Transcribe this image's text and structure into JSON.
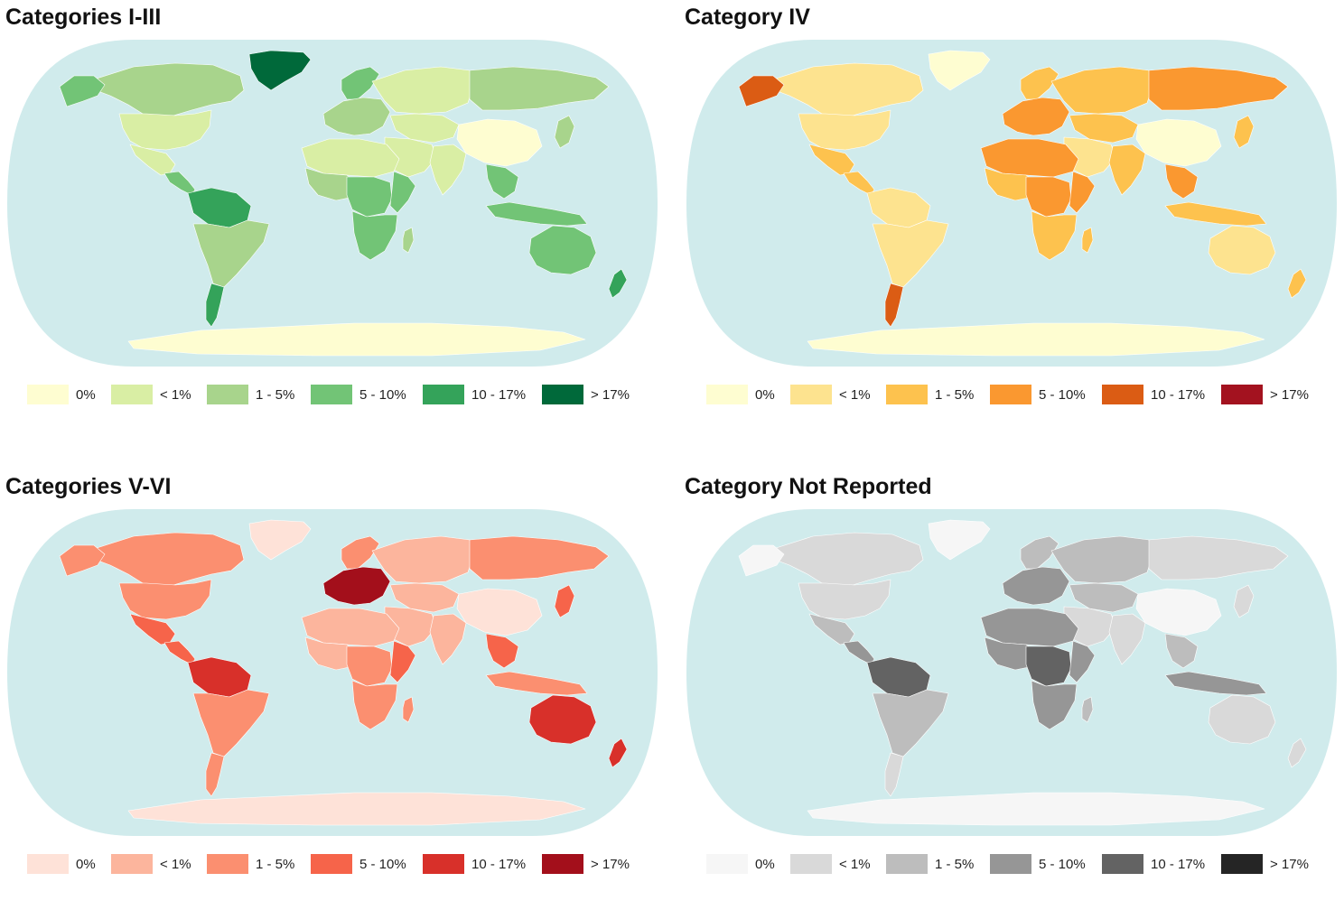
{
  "legend_labels": [
    "0%",
    "< 1%",
    "1 - 5%",
    "5 - 10%",
    "10 - 17%",
    "> 17%"
  ],
  "map_colors": {
    "ocean": "#d0ebec"
  },
  "panels": [
    {
      "title": "Categories I-III",
      "palette": [
        "#fefdd1",
        "#d9eea4",
        "#a8d48c",
        "#72c476",
        "#34a35a",
        "#00693a"
      ],
      "regions": {
        "greenland": 5,
        "canada": 2,
        "alaska": 3,
        "usa": 1,
        "mexico": 1,
        "central_america": 3,
        "south_america": 2,
        "amazon": 4,
        "patagonia": 4,
        "europe": 2,
        "scandinavia": 3,
        "russia": 1,
        "siberia_east": 2,
        "central_asia": 1,
        "china": 0,
        "middle_east": 1,
        "india": 1,
        "southeast_asia": 3,
        "indonesia": 3,
        "japan": 2,
        "north_africa": 1,
        "west_africa": 2,
        "central_africa": 3,
        "east_africa": 3,
        "southern_africa": 3,
        "madagascar": 2,
        "australia": 3,
        "new_zealand": 4,
        "antarctica": 0
      }
    },
    {
      "title": "Category IV",
      "palette": [
        "#fefdd1",
        "#fde38f",
        "#fdc24e",
        "#fa9830",
        "#db5c14",
        "#a3121f"
      ],
      "regions": {
        "greenland": 0,
        "canada": 1,
        "alaska": 4,
        "usa": 1,
        "mexico": 2,
        "central_america": 2,
        "south_america": 1,
        "amazon": 1,
        "patagonia": 4,
        "europe": 3,
        "scandinavia": 2,
        "russia": 2,
        "siberia_east": 3,
        "central_asia": 2,
        "china": 0,
        "middle_east": 1,
        "india": 2,
        "southeast_asia": 3,
        "indonesia": 2,
        "japan": 2,
        "north_africa": 3,
        "west_africa": 2,
        "central_africa": 3,
        "east_africa": 3,
        "southern_africa": 2,
        "madagascar": 2,
        "australia": 1,
        "new_zealand": 2,
        "antarctica": 0
      }
    },
    {
      "title": "Categories V-VI",
      "palette": [
        "#fee2d8",
        "#fcb59d",
        "#fb8f70",
        "#f6644a",
        "#d8302a",
        "#a30f1b"
      ],
      "regions": {
        "greenland": 0,
        "canada": 2,
        "alaska": 2,
        "usa": 2,
        "mexico": 3,
        "central_america": 3,
        "south_america": 2,
        "amazon": 4,
        "patagonia": 2,
        "europe": 5,
        "scandinavia": 2,
        "russia": 1,
        "siberia_east": 2,
        "central_asia": 1,
        "china": 0,
        "middle_east": 1,
        "india": 1,
        "southeast_asia": 3,
        "indonesia": 2,
        "japan": 3,
        "north_africa": 1,
        "west_africa": 1,
        "central_africa": 2,
        "east_africa": 3,
        "southern_africa": 2,
        "madagascar": 2,
        "australia": 4,
        "new_zealand": 4,
        "antarctica": 0
      }
    },
    {
      "title": "Category Not Reported",
      "palette": [
        "#f6f6f6",
        "#d9d9d9",
        "#bdbdbd",
        "#969696",
        "#636363",
        "#252525"
      ],
      "regions": {
        "greenland": 0,
        "canada": 1,
        "alaska": 0,
        "usa": 1,
        "mexico": 2,
        "central_america": 3,
        "south_america": 2,
        "amazon": 4,
        "patagonia": 1,
        "europe": 3,
        "scandinavia": 2,
        "russia": 2,
        "siberia_east": 1,
        "central_asia": 2,
        "china": 0,
        "middle_east": 1,
        "india": 1,
        "southeast_asia": 2,
        "indonesia": 3,
        "japan": 1,
        "north_africa": 3,
        "west_africa": 3,
        "central_africa": 4,
        "east_africa": 3,
        "southern_africa": 3,
        "madagascar": 2,
        "australia": 1,
        "new_zealand": 1,
        "antarctica": 0
      }
    }
  ]
}
